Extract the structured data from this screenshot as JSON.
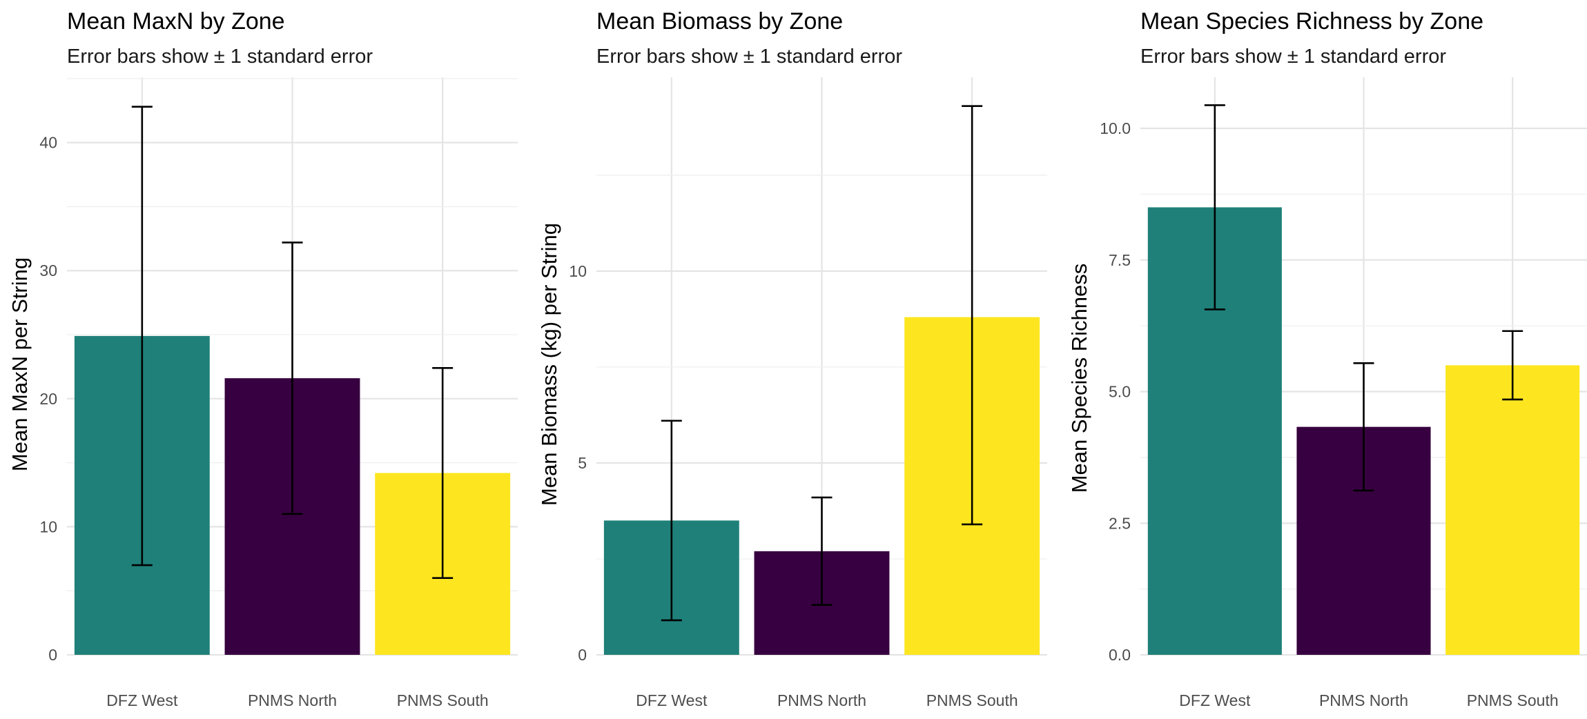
{
  "chart_data": [
    {
      "type": "bar",
      "title": "Mean MaxN by Zone",
      "subtitle": "Error bars show ± 1 standard error",
      "xlabel": "",
      "ylabel": "Mean MaxN per String",
      "categories": [
        "DFZ West",
        "PNMS North",
        "PNMS South"
      ],
      "values": [
        24.9,
        21.6,
        14.2
      ],
      "error_low": [
        7.0,
        11.0,
        6.0
      ],
      "error_high": [
        42.8,
        32.2,
        22.4
      ],
      "ylim": [
        0,
        45.1
      ],
      "yticks": [
        0,
        10,
        20,
        30,
        40
      ],
      "ytick_labels": [
        "0",
        "10",
        "20",
        "30",
        "40"
      ],
      "colors": [
        "#1f8079",
        "#370040",
        "#fde620"
      ],
      "grid": true,
      "legend": "none"
    },
    {
      "type": "bar",
      "title": "Mean Biomass by Zone",
      "subtitle": "Error bars show ± 1 standard error",
      "xlabel": "",
      "ylabel": "Mean Biomass (kg) per String",
      "categories": [
        "DFZ West",
        "PNMS North",
        "PNMS South"
      ],
      "values": [
        3.5,
        2.7,
        8.8
      ],
      "error_low": [
        0.9,
        1.3,
        3.4
      ],
      "error_high": [
        6.1,
        4.1,
        14.3
      ],
      "ylim": [
        0,
        15.05
      ],
      "yticks": [
        0,
        5,
        10
      ],
      "ytick_labels": [
        "0",
        "5",
        "10"
      ],
      "colors": [
        "#1f8079",
        "#370040",
        "#fde620"
      ],
      "grid": true,
      "legend": "none"
    },
    {
      "type": "bar",
      "title": "Mean Species Richness by Zone",
      "subtitle": "Error bars show ± 1 standard error",
      "xlabel": "",
      "ylabel": "Mean Species Richness",
      "categories": [
        "DFZ West",
        "PNMS North",
        "PNMS South"
      ],
      "values": [
        8.5,
        4.33,
        5.5
      ],
      "error_low": [
        6.56,
        3.12,
        4.85
      ],
      "error_high": [
        10.44,
        5.54,
        6.15
      ],
      "ylim": [
        0,
        10.97
      ],
      "yticks": [
        0,
        2.5,
        5,
        7.5,
        10
      ],
      "ytick_labels": [
        "0.0",
        "2.5",
        "5.0",
        "7.5",
        "10.0"
      ],
      "colors": [
        "#1f8079",
        "#370040",
        "#fde620"
      ],
      "grid": true,
      "legend": "none"
    }
  ]
}
